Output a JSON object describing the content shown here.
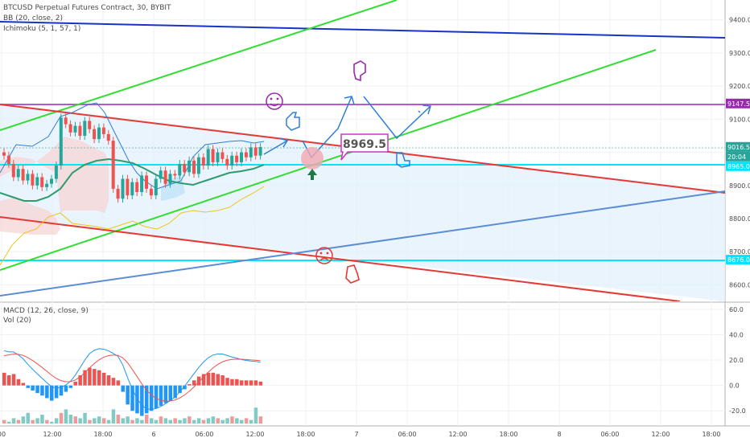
{
  "chart_data": [
    {
      "type": "candlestick",
      "title": "BTCUSD Perpetual Futures Contract, 30, BYBIT",
      "indicators": [
        "BB (20, close, 2)",
        "Ichimoku (5, 1, 57, 1)"
      ],
      "price_axis": {
        "ylim": [
          8550,
          9460
        ],
        "ticks": [
          "9400.0",
          "9300.0",
          "9200.0",
          "9100.0",
          "9000.0",
          "8900.0",
          "8800.0",
          "8700.0",
          "8600.0"
        ]
      },
      "time_axis": {
        "labels": [
          "00",
          "12:00",
          "18:00",
          "6",
          "06:00",
          "12:00",
          "18:00",
          "7",
          "06:00",
          "12:00",
          "18:00",
          "8",
          "06:00",
          "12:00",
          "18:00"
        ]
      },
      "price_badges": [
        {
          "label": "9147.5",
          "price": 9147.5,
          "color": "#9c27b0"
        },
        {
          "label": "9016.5",
          "price": 9016.5,
          "color": "#26a69a"
        },
        {
          "label": "20:04",
          "price": 8990,
          "color": "#26a69a"
        },
        {
          "label": "8965.0",
          "price": 8965,
          "color": "#00e5ff"
        },
        {
          "label": "8676.0",
          "price": 8676,
          "color": "#00e5ff"
        }
      ],
      "horizontal_levels": [
        {
          "price": 9147.5,
          "color": "#ba55d3"
        },
        {
          "price": 8965,
          "color": "#00e5ff"
        },
        {
          "price": 8676,
          "color": "#00e5ff"
        }
      ],
      "annotations": [
        {
          "text": "8969.5"
        }
      ],
      "candles": [
        [
          9000,
          8990
        ],
        [
          8990,
          8965
        ],
        [
          8965,
          8925
        ],
        [
          8925,
          8950
        ],
        [
          8950,
          8915
        ],
        [
          8915,
          8935
        ],
        [
          8935,
          8900
        ],
        [
          8900,
          8925
        ],
        [
          8925,
          8895
        ],
        [
          8895,
          8905
        ],
        [
          8905,
          8920
        ],
        [
          8920,
          8960
        ],
        [
          8960,
          9105
        ],
        [
          9105,
          9085
        ],
        [
          9085,
          9060
        ],
        [
          9060,
          9080
        ],
        [
          9080,
          9050
        ],
        [
          9050,
          9095
        ],
        [
          9095,
          9070
        ],
        [
          9070,
          9040
        ],
        [
          9040,
          9075
        ],
        [
          9075,
          9055
        ],
        [
          9055,
          9035
        ],
        [
          9035,
          8890
        ],
        [
          8890,
          8860
        ],
        [
          8860,
          8920
        ],
        [
          8920,
          8870
        ],
        [
          8870,
          8910
        ],
        [
          8910,
          8880
        ],
        [
          8880,
          8930
        ],
        [
          8930,
          8890
        ],
        [
          8890,
          8870
        ],
        [
          8870,
          8920
        ],
        [
          8920,
          8945
        ],
        [
          8945,
          8905
        ],
        [
          8905,
          8935
        ],
        [
          8935,
          8930
        ],
        [
          8930,
          8965
        ],
        [
          8965,
          8940
        ],
        [
          8940,
          8975
        ],
        [
          8975,
          8935
        ],
        [
          8935,
          8985
        ],
        [
          8985,
          8960
        ],
        [
          8960,
          9010
        ],
        [
          9010,
          8970
        ],
        [
          8970,
          9000
        ],
        [
          9000,
          8980
        ],
        [
          8980,
          8960
        ],
        [
          8960,
          8990
        ],
        [
          8990,
          8970
        ],
        [
          8970,
          9000
        ],
        [
          9000,
          8985
        ],
        [
          8985,
          9015
        ],
        [
          9015,
          8990
        ],
        [
          8990,
          9016
        ]
      ]
    },
    {
      "type": "macd",
      "title": "MACD (12, 26, close, 9)",
      "subtitle": "Vol (20)",
      "ylim": [
        -30,
        65
      ],
      "ticks": [
        "60.0",
        "40.0",
        "20.0",
        "0.0",
        "-20.0"
      ],
      "histogram": [
        10,
        8,
        9,
        5,
        2,
        -2,
        -4,
        -6,
        -8,
        -10,
        -12,
        -10,
        -8,
        -5,
        -2,
        3,
        8,
        12,
        14,
        13,
        12,
        10,
        8,
        6,
        4,
        -5,
        -15,
        -20,
        -22,
        -24,
        -22,
        -20,
        -18,
        -16,
        -14,
        -12,
        -10,
        -6,
        -3,
        1,
        4,
        7,
        9,
        10,
        10,
        9,
        8,
        6,
        5,
        5,
        4,
        4,
        4,
        4,
        3
      ],
      "volume": [
        2,
        1,
        3,
        2,
        4,
        6,
        2,
        3,
        5,
        2,
        1,
        3,
        6,
        8,
        5,
        4,
        3,
        6,
        2,
        3,
        4,
        3,
        2,
        8,
        5,
        3,
        4,
        2,
        3,
        2,
        5,
        3,
        2,
        4,
        3,
        2,
        3,
        2,
        3,
        4,
        2,
        3,
        2,
        3,
        4,
        3,
        2,
        3,
        4,
        3,
        2,
        3,
        2,
        9,
        4
      ]
    }
  ]
}
